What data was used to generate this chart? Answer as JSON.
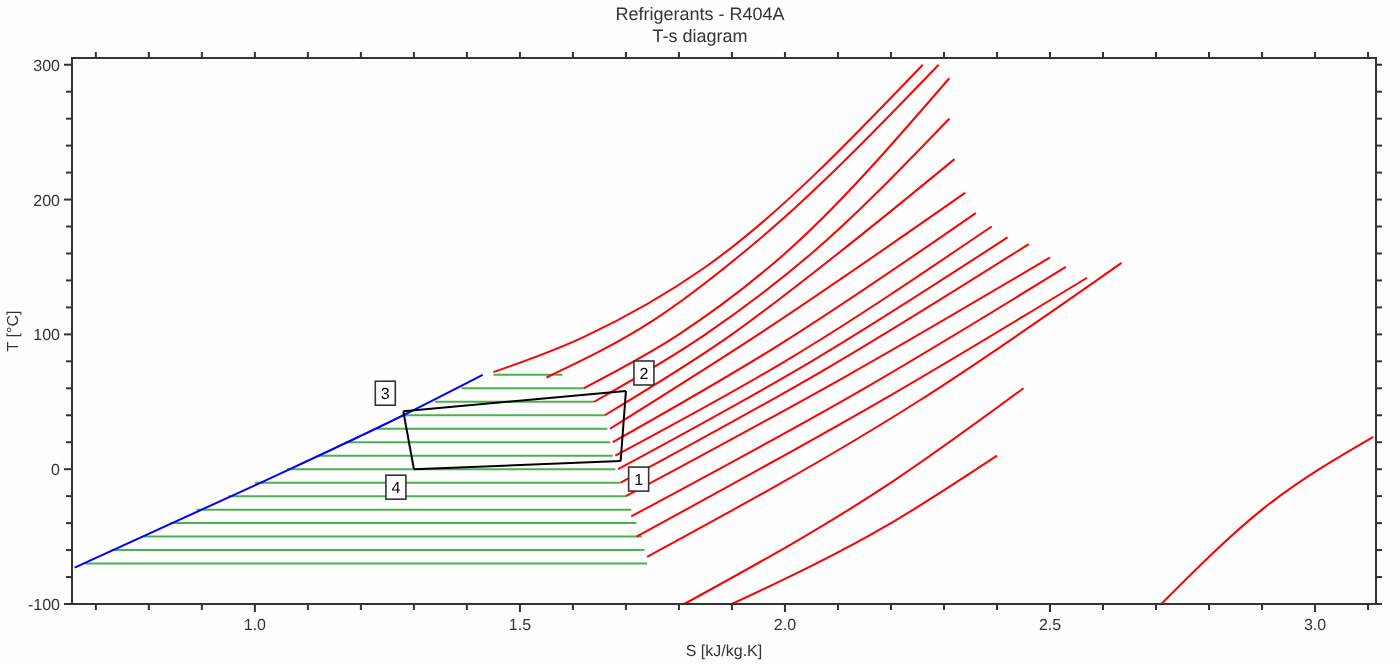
{
  "chart_data": {
    "type": "line",
    "title": "Refrigerants - R404A",
    "subtitle": "T-s diagram",
    "xlabel": "S [kJ/kg.K]",
    "ylabel": "T [°C]",
    "xlim": [
      0.655,
      3.115
    ],
    "ylim": [
      -100,
      305
    ],
    "xticks": [
      {
        "value": 0.7,
        "label": null
      },
      {
        "value": 0.8,
        "label": null
      },
      {
        "value": 0.9,
        "label": null
      },
      {
        "value": 1.0,
        "label": "1.0"
      },
      {
        "value": 1.1,
        "label": null
      },
      {
        "value": 1.2,
        "label": null
      },
      {
        "value": 1.3,
        "label": null
      },
      {
        "value": 1.4,
        "label": null
      },
      {
        "value": 1.5,
        "label": "1.5"
      },
      {
        "value": 1.6,
        "label": null
      },
      {
        "value": 1.7,
        "label": null
      },
      {
        "value": 1.8,
        "label": null
      },
      {
        "value": 1.9,
        "label": null
      },
      {
        "value": 2.0,
        "label": "2.0"
      },
      {
        "value": 2.1,
        "label": null
      },
      {
        "value": 2.2,
        "label": null
      },
      {
        "value": 2.3,
        "label": null
      },
      {
        "value": 2.4,
        "label": null
      },
      {
        "value": 2.5,
        "label": "2.5"
      },
      {
        "value": 2.6,
        "label": null
      },
      {
        "value": 2.7,
        "label": null
      },
      {
        "value": 2.8,
        "label": null
      },
      {
        "value": 2.9,
        "label": null
      },
      {
        "value": 3.0,
        "label": "3.0"
      },
      {
        "value": 3.1,
        "label": null
      }
    ],
    "yticks": [
      -100,
      {
        "value": -80,
        "label": null
      },
      {
        "value": -60,
        "label": null
      },
      {
        "value": -40,
        "label": null
      },
      {
        "value": -20,
        "label": null
      },
      0,
      {
        "value": 20,
        "label": null
      },
      {
        "value": 40,
        "label": null
      },
      {
        "value": 60,
        "label": null
      },
      {
        "value": 80,
        "label": null
      },
      100,
      {
        "value": 120,
        "label": null
      },
      {
        "value": 140,
        "label": null
      },
      {
        "value": 160,
        "label": null
      },
      {
        "value": 180,
        "label": null
      },
      200,
      {
        "value": 220,
        "label": null
      },
      {
        "value": 240,
        "label": null
      },
      {
        "value": 260,
        "label": null
      },
      {
        "value": 280,
        "label": null
      },
      300
    ],
    "grid": false,
    "marker": "none",
    "line_style": "solid",
    "series": [
      {
        "color": "#4caf50",
        "x": [
          0.68,
          1.74
        ],
        "values": [
          -70,
          -70
        ]
      },
      {
        "color": "#4caf50",
        "x": [
          0.73,
          1.735
        ],
        "values": [
          -60,
          -60
        ]
      },
      {
        "color": "#4caf50",
        "x": [
          0.79,
          1.73
        ],
        "values": [
          -50,
          -50
        ]
      },
      {
        "color": "#4caf50",
        "x": [
          0.84,
          1.72
        ],
        "values": [
          -40,
          -40
        ]
      },
      {
        "color": "#4caf50",
        "x": [
          0.89,
          1.71
        ],
        "values": [
          -30,
          -30
        ]
      },
      {
        "color": "#4caf50",
        "x": [
          0.95,
          1.7
        ],
        "values": [
          -20,
          -20
        ]
      },
      {
        "color": "#4caf50",
        "x": [
          1.0,
          1.69
        ],
        "values": [
          -10,
          -10
        ]
      },
      {
        "color": "#4caf50",
        "x": [
          1.06,
          1.68
        ],
        "values": [
          0,
          0
        ]
      },
      {
        "color": "#4caf50",
        "x": [
          1.12,
          1.675
        ],
        "values": [
          10,
          10
        ]
      },
      {
        "color": "#4caf50",
        "x": [
          1.17,
          1.67
        ],
        "values": [
          20,
          20
        ]
      },
      {
        "color": "#4caf50",
        "x": [
          1.23,
          1.665
        ],
        "values": [
          30,
          30
        ]
      },
      {
        "color": "#4caf50",
        "x": [
          1.28,
          1.66
        ],
        "values": [
          40,
          40
        ]
      },
      {
        "color": "#4caf50",
        "x": [
          1.34,
          1.64
        ],
        "values": [
          50,
          50
        ]
      },
      {
        "color": "#4caf50",
        "x": [
          1.39,
          1.62
        ],
        "values": [
          60,
          60
        ]
      },
      {
        "color": "#4caf50",
        "x": [
          1.45,
          1.58
        ],
        "values": [
          70,
          70
        ]
      },
      {
        "color": "#ff0000",
        "x": [
          1.45,
          1.62,
          1.85,
          2.26
        ],
        "values": [
          72,
          98,
          150,
          300
        ]
      },
      {
        "color": "#ff0000",
        "x": [
          1.55,
          1.75,
          1.95,
          2.29
        ],
        "values": [
          68,
          110,
          170,
          300
        ]
      },
      {
        "color": "#ff0000",
        "x": [
          1.62,
          1.8,
          2.0,
          2.31
        ],
        "values": [
          60,
          100,
          160,
          290
        ]
      },
      {
        "color": "#ff0000",
        "x": [
          1.64,
          1.85,
          2.05,
          2.31
        ],
        "values": [
          50,
          100,
          160,
          260
        ]
      },
      {
        "color": "#ff0000",
        "x": [
          1.66,
          1.9,
          2.1,
          2.32
        ],
        "values": [
          40,
          100,
          160,
          230
        ]
      },
      {
        "color": "#ff0000",
        "x": [
          1.67,
          1.95,
          2.34
        ],
        "values": [
          30,
          100,
          205
        ]
      },
      {
        "color": "#ff0000",
        "x": [
          1.675,
          1.98,
          2.36
        ],
        "values": [
          20,
          90,
          190
        ]
      },
      {
        "color": "#ff0000",
        "x": [
          1.68,
          2.0,
          2.39
        ],
        "values": [
          10,
          80,
          180
        ]
      },
      {
        "color": "#ff0000",
        "x": [
          1.685,
          2.05,
          2.42
        ],
        "values": [
          0,
          80,
          172
        ]
      },
      {
        "color": "#ff0000",
        "x": [
          1.69,
          2.08,
          2.46
        ],
        "values": [
          -10,
          75,
          167
        ]
      },
      {
        "color": "#ff0000",
        "x": [
          1.7,
          2.12,
          2.5
        ],
        "values": [
          -20,
          70,
          157
        ]
      },
      {
        "color": "#ff0000",
        "x": [
          1.71,
          2.15,
          2.53
        ],
        "values": [
          -35,
          60,
          150
        ]
      },
      {
        "color": "#ff0000",
        "x": [
          1.72,
          2.2,
          2.57
        ],
        "values": [
          -50,
          55,
          142
        ]
      },
      {
        "color": "#ff0000",
        "x": [
          1.74,
          2.25,
          2.635
        ],
        "values": [
          -65,
          50,
          153
        ]
      },
      {
        "color": "#ff0000",
        "x": [
          1.81,
          2.2,
          2.45
        ],
        "values": [
          -100,
          -10,
          60
        ]
      },
      {
        "color": "#ff0000",
        "x": [
          1.9,
          2.2,
          2.4
        ],
        "values": [
          -100,
          -40,
          10
        ]
      },
      {
        "color": "#ff0000",
        "x": [
          2.71,
          2.9,
          3.11
        ],
        "values": [
          -100,
          -30,
          24
        ]
      },
      {
        "color": "#0000ff",
        "x": [
          0.66,
          1.0,
          1.28,
          1.43
        ],
        "values": [
          -73,
          -12,
          40,
          70
        ]
      },
      {
        "color": "#000000",
        "x": [
          1.69,
          1.7
        ],
        "values": [
          6,
          58
        ]
      },
      {
        "color": "#000000",
        "x": [
          1.28,
          1.7
        ],
        "values": [
          43,
          58
        ]
      },
      {
        "color": "#000000",
        "x": [
          1.28,
          1.3
        ],
        "values": [
          43,
          0
        ]
      },
      {
        "color": "#000000",
        "x": [
          1.3,
          1.69
        ],
        "values": [
          0,
          6
        ]
      }
    ],
    "annotations": [
      {
        "text": "1",
        "x": 1.69,
        "y": 6
      },
      {
        "text": "2",
        "x": 1.7,
        "y": 58
      },
      {
        "text": "3",
        "x": 1.28,
        "y": 43
      },
      {
        "text": "4",
        "x": 1.3,
        "y": 0
      }
    ]
  }
}
